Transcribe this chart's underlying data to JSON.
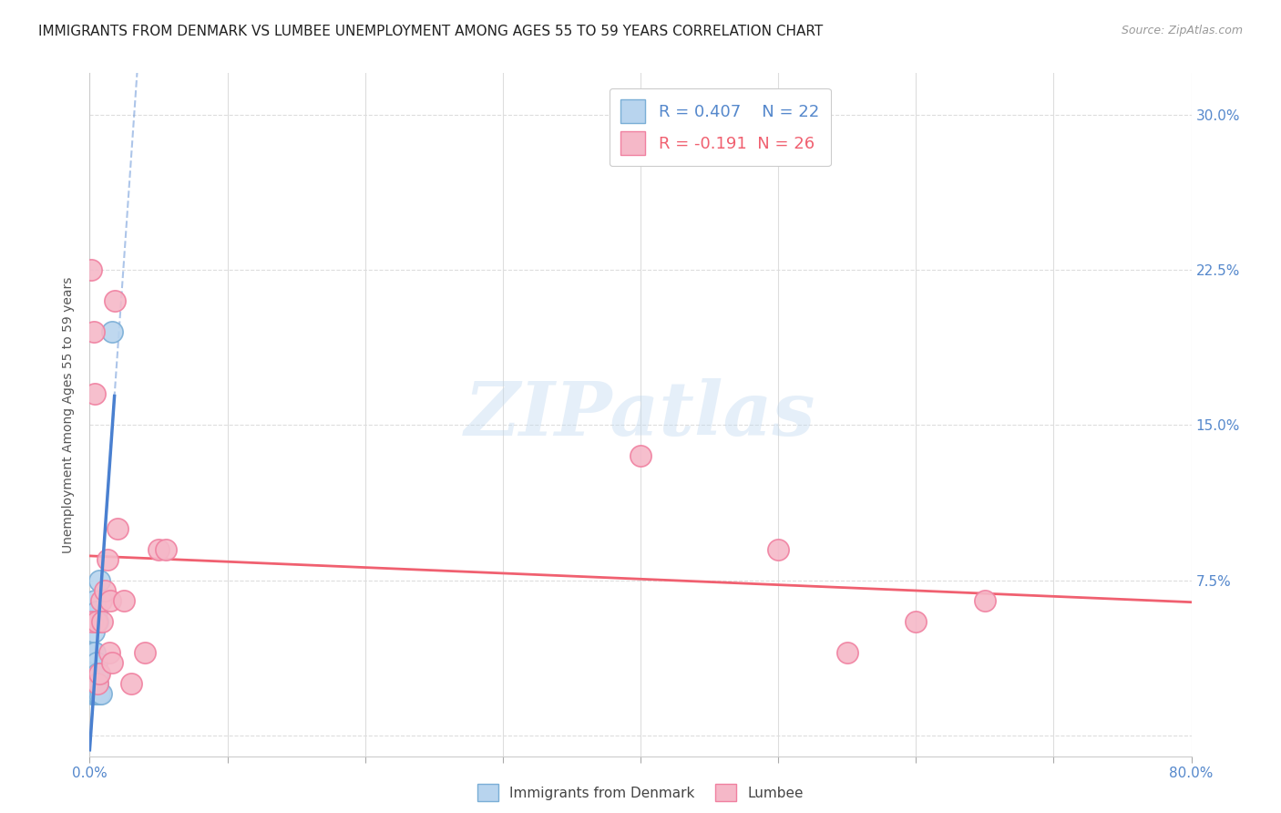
{
  "title": "IMMIGRANTS FROM DENMARK VS LUMBEE UNEMPLOYMENT AMONG AGES 55 TO 59 YEARS CORRELATION CHART",
  "source": "Source: ZipAtlas.com",
  "ylabel": "Unemployment Among Ages 55 to 59 years",
  "xlim": [
    0.0,
    0.8
  ],
  "ylim": [
    -0.01,
    0.32
  ],
  "xticks": [
    0.0,
    0.1,
    0.2,
    0.3,
    0.4,
    0.5,
    0.6,
    0.7,
    0.8
  ],
  "ytick_positions": [
    0.0,
    0.075,
    0.15,
    0.225,
    0.3
  ],
  "ytick_labels_right": [
    "",
    "7.5%",
    "15.0%",
    "22.5%",
    "30.0%"
  ],
  "denmark_R": 0.407,
  "denmark_N": 22,
  "lumbee_R": -0.191,
  "lumbee_N": 26,
  "denmark_fill": "#b8d4ee",
  "denmark_edge": "#7aaed6",
  "lumbee_fill": "#f5b8c8",
  "lumbee_edge": "#f080a0",
  "denmark_line_color": "#4a80d0",
  "lumbee_line_color": "#f06070",
  "denmark_x": [
    0.001,
    0.002,
    0.002,
    0.003,
    0.003,
    0.003,
    0.004,
    0.004,
    0.004,
    0.004,
    0.005,
    0.005,
    0.005,
    0.005,
    0.006,
    0.006,
    0.006,
    0.006,
    0.007,
    0.007,
    0.008,
    0.016
  ],
  "denmark_y": [
    0.025,
    0.02,
    0.04,
    0.02,
    0.025,
    0.05,
    0.02,
    0.025,
    0.04,
    0.065,
    0.02,
    0.025,
    0.035,
    0.06,
    0.02,
    0.025,
    0.03,
    0.055,
    0.02,
    0.075,
    0.02,
    0.195
  ],
  "lumbee_x": [
    0.001,
    0.002,
    0.003,
    0.004,
    0.005,
    0.006,
    0.007,
    0.008,
    0.009,
    0.011,
    0.013,
    0.014,
    0.015,
    0.016,
    0.018,
    0.02,
    0.025,
    0.03,
    0.04,
    0.05,
    0.055,
    0.4,
    0.5,
    0.55,
    0.6,
    0.65
  ],
  "lumbee_y": [
    0.225,
    0.055,
    0.195,
    0.165,
    0.055,
    0.025,
    0.03,
    0.065,
    0.055,
    0.07,
    0.085,
    0.04,
    0.065,
    0.035,
    0.21,
    0.1,
    0.065,
    0.025,
    0.04,
    0.09,
    0.09,
    0.135,
    0.09,
    0.04,
    0.055,
    0.065
  ],
  "watermark": "ZIPatlas",
  "title_fontsize": 11,
  "label_fontsize": 10,
  "tick_fontsize": 11
}
